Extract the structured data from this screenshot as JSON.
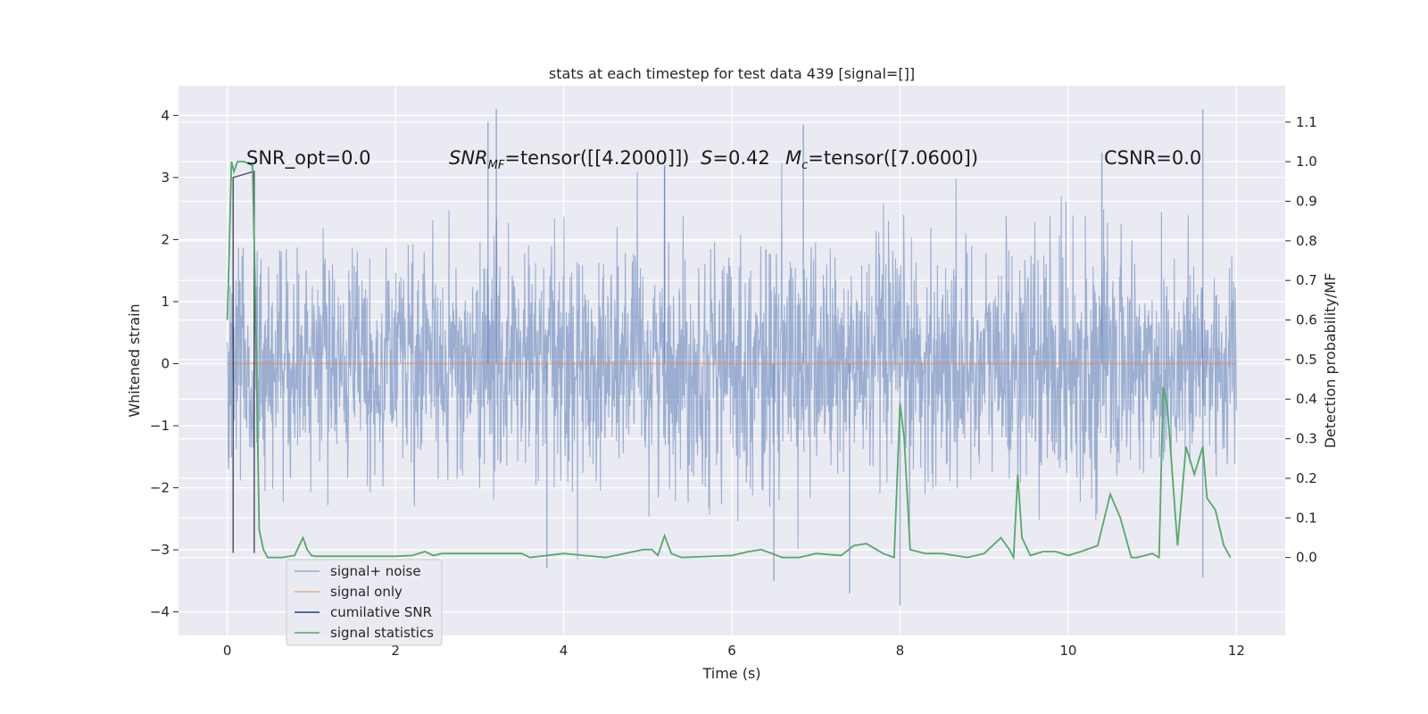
{
  "chart_data": {
    "type": "line",
    "title": "stats at each timestep for test data 439 [signal=[]]",
    "xlabel": "Time (s)",
    "ylabel": "Whitened strain",
    "y2label": "Detection probability/MF",
    "xlim": [
      -0.58,
      12.58
    ],
    "ylim": [
      -4.38,
      4.48
    ],
    "y2lim": [
      -0.197,
      1.192
    ],
    "xticks": [
      0,
      2,
      4,
      6,
      8,
      10,
      12
    ],
    "yticks": [
      -4,
      -3,
      -2,
      -1,
      0,
      1,
      2,
      3,
      4
    ],
    "y2ticks": [
      0.0,
      0.1,
      0.2,
      0.3,
      0.4,
      0.5,
      0.6,
      0.7,
      0.8,
      0.9,
      1.0,
      1.1
    ],
    "xtick_labels": [
      "0",
      "2",
      "4",
      "6",
      "8",
      "10",
      "12"
    ],
    "ytick_labels": [
      "−4",
      "−3",
      "−2",
      "−1",
      "0",
      "1",
      "2",
      "3",
      "4"
    ],
    "y2tick_labels": [
      "0.0",
      "0.1",
      "0.2",
      "0.3",
      "0.4",
      "0.5",
      "0.6",
      "0.7",
      "0.8",
      "0.9",
      "1.0",
      "1.1"
    ],
    "annotations": {
      "snr_opt": "SNR_opt=0.0",
      "snr_mf_prefix": "SNR",
      "snr_mf_sub": "MF",
      "snr_mf_value": "=tensor([[4.2000]])",
      "s_prefix": "S",
      "s_value": "=0.42",
      "mc_prefix": "M",
      "mc_sub": "c",
      "mc_value": "=tensor([7.0600])",
      "csnr": "CSNR=0.0"
    },
    "legend": {
      "location": "lower-left",
      "entries": [
        "signal+ noise",
        "signal only",
        "cumilative SNR",
        "signal statistics"
      ]
    },
    "series": [
      {
        "name": "signal+ noise",
        "color": "#4c72b0",
        "axis": "left",
        "description": "whitened noise, approx gaussian, envelope about +-2 with spikes to +-4",
        "x_range": [
          0,
          12
        ],
        "std": 1.0,
        "spikes": [
          [
            3.2,
            4.1
          ],
          [
            11.6,
            4.1
          ],
          [
            3.1,
            3.9
          ],
          [
            6.85,
            3.85
          ],
          [
            8.0,
            -3.9
          ],
          [
            3.8,
            -3.3
          ],
          [
            7.4,
            -3.7
          ],
          [
            11.6,
            -3.45
          ],
          [
            6.5,
            -3.5
          ],
          [
            10.4,
            3.4
          ],
          [
            5.2,
            3.2
          ]
        ]
      },
      {
        "name": "signal only",
        "color": "#dd8452",
        "axis": "left",
        "x": [
          0,
          12
        ],
        "values": [
          0,
          0
        ]
      },
      {
        "name": "cumilative SNR",
        "color": "#1f1f3d",
        "axis": "left",
        "x": [
          0.07,
          0.07,
          0.32,
          0.32
        ],
        "values": [
          -3.05,
          3.0,
          3.1,
          -3.05
        ]
      },
      {
        "name": "signal statistics",
        "color": "#55a868",
        "axis": "right",
        "x": [
          0.0,
          0.02,
          0.05,
          0.08,
          0.12,
          0.2,
          0.3,
          0.33,
          0.38,
          0.43,
          0.48,
          0.55,
          0.65,
          0.8,
          0.9,
          0.95,
          1.0,
          1.05,
          1.12,
          1.3,
          1.6,
          2.0,
          2.2,
          2.35,
          2.45,
          2.55,
          3.0,
          3.5,
          3.6,
          4.0,
          4.5,
          4.95,
          5.05,
          5.12,
          5.2,
          5.28,
          5.4,
          6.0,
          6.2,
          6.35,
          6.6,
          6.8,
          7.0,
          7.3,
          7.45,
          7.6,
          7.8,
          7.93,
          8.0,
          8.05,
          8.12,
          8.3,
          8.5,
          8.8,
          9.0,
          9.2,
          9.3,
          9.35,
          9.4,
          9.45,
          9.55,
          9.7,
          9.85,
          10.0,
          10.15,
          10.35,
          10.5,
          10.62,
          10.75,
          10.82,
          11.0,
          11.08,
          11.13,
          11.18,
          11.3,
          11.4,
          11.5,
          11.6,
          11.65,
          11.75,
          11.85,
          11.93
        ],
        "values": [
          0.6,
          0.75,
          1.0,
          0.975,
          1.0,
          1.0,
          0.99,
          0.7,
          0.07,
          0.02,
          0.0,
          0.0,
          0.0,
          0.005,
          0.05,
          0.02,
          0.005,
          0.003,
          0.003,
          0.003,
          0.003,
          0.003,
          0.005,
          0.015,
          0.005,
          0.01,
          0.01,
          0.01,
          0.0,
          0.01,
          0.0,
          0.02,
          0.02,
          0.005,
          0.055,
          0.01,
          0.0,
          0.005,
          0.015,
          0.02,
          0.0,
          0.0,
          0.01,
          0.005,
          0.03,
          0.035,
          0.01,
          0.0,
          0.39,
          0.3,
          0.02,
          0.01,
          0.01,
          0.0,
          0.01,
          0.05,
          0.02,
          0.0,
          0.21,
          0.05,
          0.005,
          0.015,
          0.015,
          0.005,
          0.015,
          0.03,
          0.16,
          0.1,
          0.0,
          0.0,
          0.01,
          0.0,
          0.43,
          0.38,
          0.03,
          0.28,
          0.21,
          0.28,
          0.15,
          0.12,
          0.03,
          0.0
        ]
      }
    ]
  }
}
